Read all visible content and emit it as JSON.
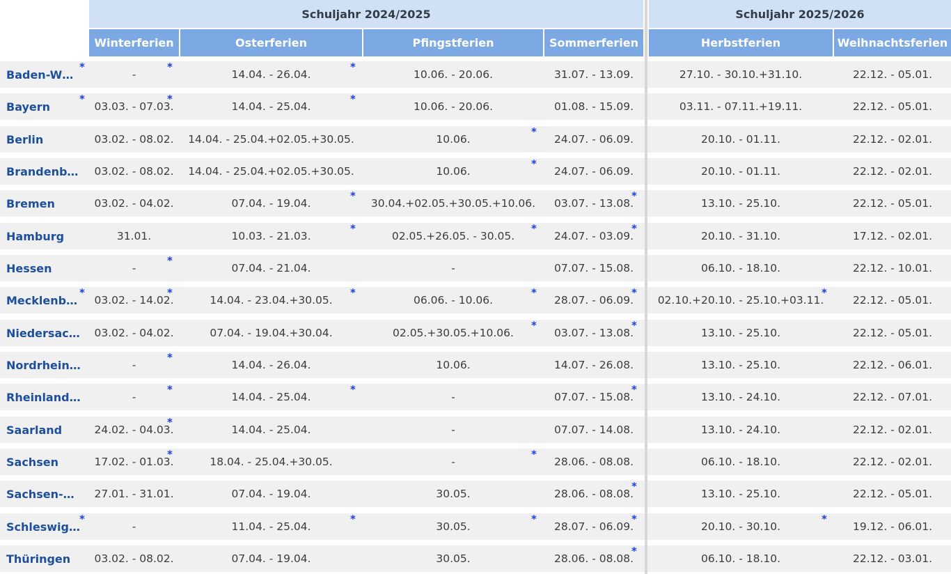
{
  "school_years": [
    {
      "label": "Schuljahr 2024/2025"
    },
    {
      "label": "Schuljahr 2025/2026"
    }
  ],
  "columns": [
    "Winterferien",
    "Osterferien",
    "Pfingstferien",
    "Sommerferien",
    "Herbstferien",
    "Weihnachtsferien"
  ],
  "note_marker": "*",
  "colors": {
    "year_header": "#d0e1f5",
    "column_header": "#7ca9e3",
    "row_bg": "#f0f0f0",
    "state_link": "#1e4f9a",
    "note_marker": "#1a3fe0"
  },
  "rows": [
    {
      "state": "Baden-W…",
      "cells": [
        "-",
        "14.04. - 26.04.",
        "10.06. - 20.06.",
        "31.07. - 13.09.",
        "27.10. - 30.10.+31.10.",
        "22.12. - 05.01."
      ],
      "notes": [
        0,
        1,
        5
      ]
    },
    {
      "state": "Bayern",
      "cells": [
        "03.03. - 07.03.",
        "14.04. - 25.04.",
        "10.06. - 20.06.",
        "01.08. - 15.09.",
        "03.11. - 07.11.+19.11.",
        "22.12. - 05.01."
      ],
      "notes": [
        0,
        1,
        5
      ]
    },
    {
      "state": "Berlin",
      "cells": [
        "03.02. - 08.02.",
        "14.04. - 25.04.+02.05.+30.05.",
        "10.06.",
        "24.07. - 06.09.",
        "20.10. - 01.11.",
        "22.12. - 02.01."
      ],
      "notes": [
        2
      ]
    },
    {
      "state": "Brandenb…",
      "cells": [
        "03.02. - 08.02.",
        "14.04. - 25.04.+02.05.+30.05.",
        "10.06.",
        "24.07. - 06.09.",
        "20.10. - 01.11.",
        "22.12. - 02.01."
      ],
      "notes": [
        2
      ]
    },
    {
      "state": "Bremen",
      "cells": [
        "03.02. - 04.02.",
        "07.04. - 19.04.",
        "30.04.+02.05.+30.05.+10.06.",
        "03.07. - 13.08.",
        "13.10. - 25.10.",
        "22.12. - 05.01."
      ],
      "notes": [
        1,
        3
      ]
    },
    {
      "state": "Hamburg",
      "cells": [
        "31.01.",
        "10.03. - 21.03.",
        "02.05.+26.05. - 30.05.",
        "24.07. - 03.09.",
        "20.10. - 31.10.",
        "17.12. - 02.01."
      ],
      "notes": [
        1,
        2,
        3
      ]
    },
    {
      "state": "Hessen",
      "cells": [
        "-",
        "07.04. - 21.04.",
        "-",
        "07.07. - 15.08.",
        "06.10. - 18.10.",
        "22.12. - 10.01."
      ],
      "notes": [
        0
      ]
    },
    {
      "state": "Mecklenb…",
      "cells": [
        "03.02. - 14.02.",
        "14.04. - 23.04.+30.05.",
        "06.06. - 10.06.",
        "28.07. - 06.09.",
        "02.10.+20.10. - 25.10.+03.11.",
        "22.12. - 05.01."
      ],
      "notes": [
        0,
        1,
        2,
        3,
        4,
        5
      ]
    },
    {
      "state": "Niedersac…",
      "cells": [
        "03.02. - 04.02.",
        "07.04. - 19.04.+30.04.",
        "02.05.+30.05.+10.06.",
        "03.07. - 13.08.",
        "13.10. - 25.10.",
        "22.12. - 05.01."
      ],
      "notes": [
        2,
        3
      ]
    },
    {
      "state": "Nordrhein…",
      "cells": [
        "-",
        "14.04. - 26.04.",
        "10.06.",
        "14.07. - 26.08.",
        "13.10. - 25.10.",
        "22.12. - 06.01."
      ],
      "notes": [
        0
      ]
    },
    {
      "state": "Rheinland…",
      "cells": [
        "-",
        "14.04. - 25.04.",
        "-",
        "07.07. - 15.08.",
        "13.10. - 24.10.",
        "22.12. - 07.01."
      ],
      "notes": [
        0,
        1,
        3
      ]
    },
    {
      "state": "Saarland",
      "cells": [
        "24.02. - 04.03.",
        "14.04. - 25.04.",
        "-",
        "07.07. - 14.08.",
        "13.10. - 24.10.",
        "22.12. - 02.01."
      ],
      "notes": [
        0
      ]
    },
    {
      "state": "Sachsen",
      "cells": [
        "17.02. - 01.03.",
        "18.04. - 25.04.+30.05.",
        "-",
        "28.06. - 08.08.",
        "06.10. - 18.10.",
        "22.12. - 02.01."
      ],
      "notes": [
        0,
        2
      ]
    },
    {
      "state": "Sachsen-…",
      "cells": [
        "27.01. - 31.01.",
        "07.04. - 19.04.",
        "30.05.",
        "28.06. - 08.08.",
        "13.10. - 25.10.",
        "22.12. - 05.01."
      ],
      "notes": [
        3
      ]
    },
    {
      "state": "Schleswig…",
      "cells": [
        "-",
        "11.04. - 25.04.",
        "30.05.",
        "28.07. - 06.09.",
        "20.10. - 30.10.",
        "19.12. - 06.01."
      ],
      "notes": [
        1,
        2,
        3,
        4,
        5
      ]
    },
    {
      "state": "Thüringen",
      "cells": [
        "03.02. - 08.02.",
        "07.04. - 19.04.",
        "30.05.",
        "28.06. - 08.08.",
        "06.10. - 18.10.",
        "22.12. - 03.01."
      ],
      "notes": [
        3
      ]
    }
  ]
}
